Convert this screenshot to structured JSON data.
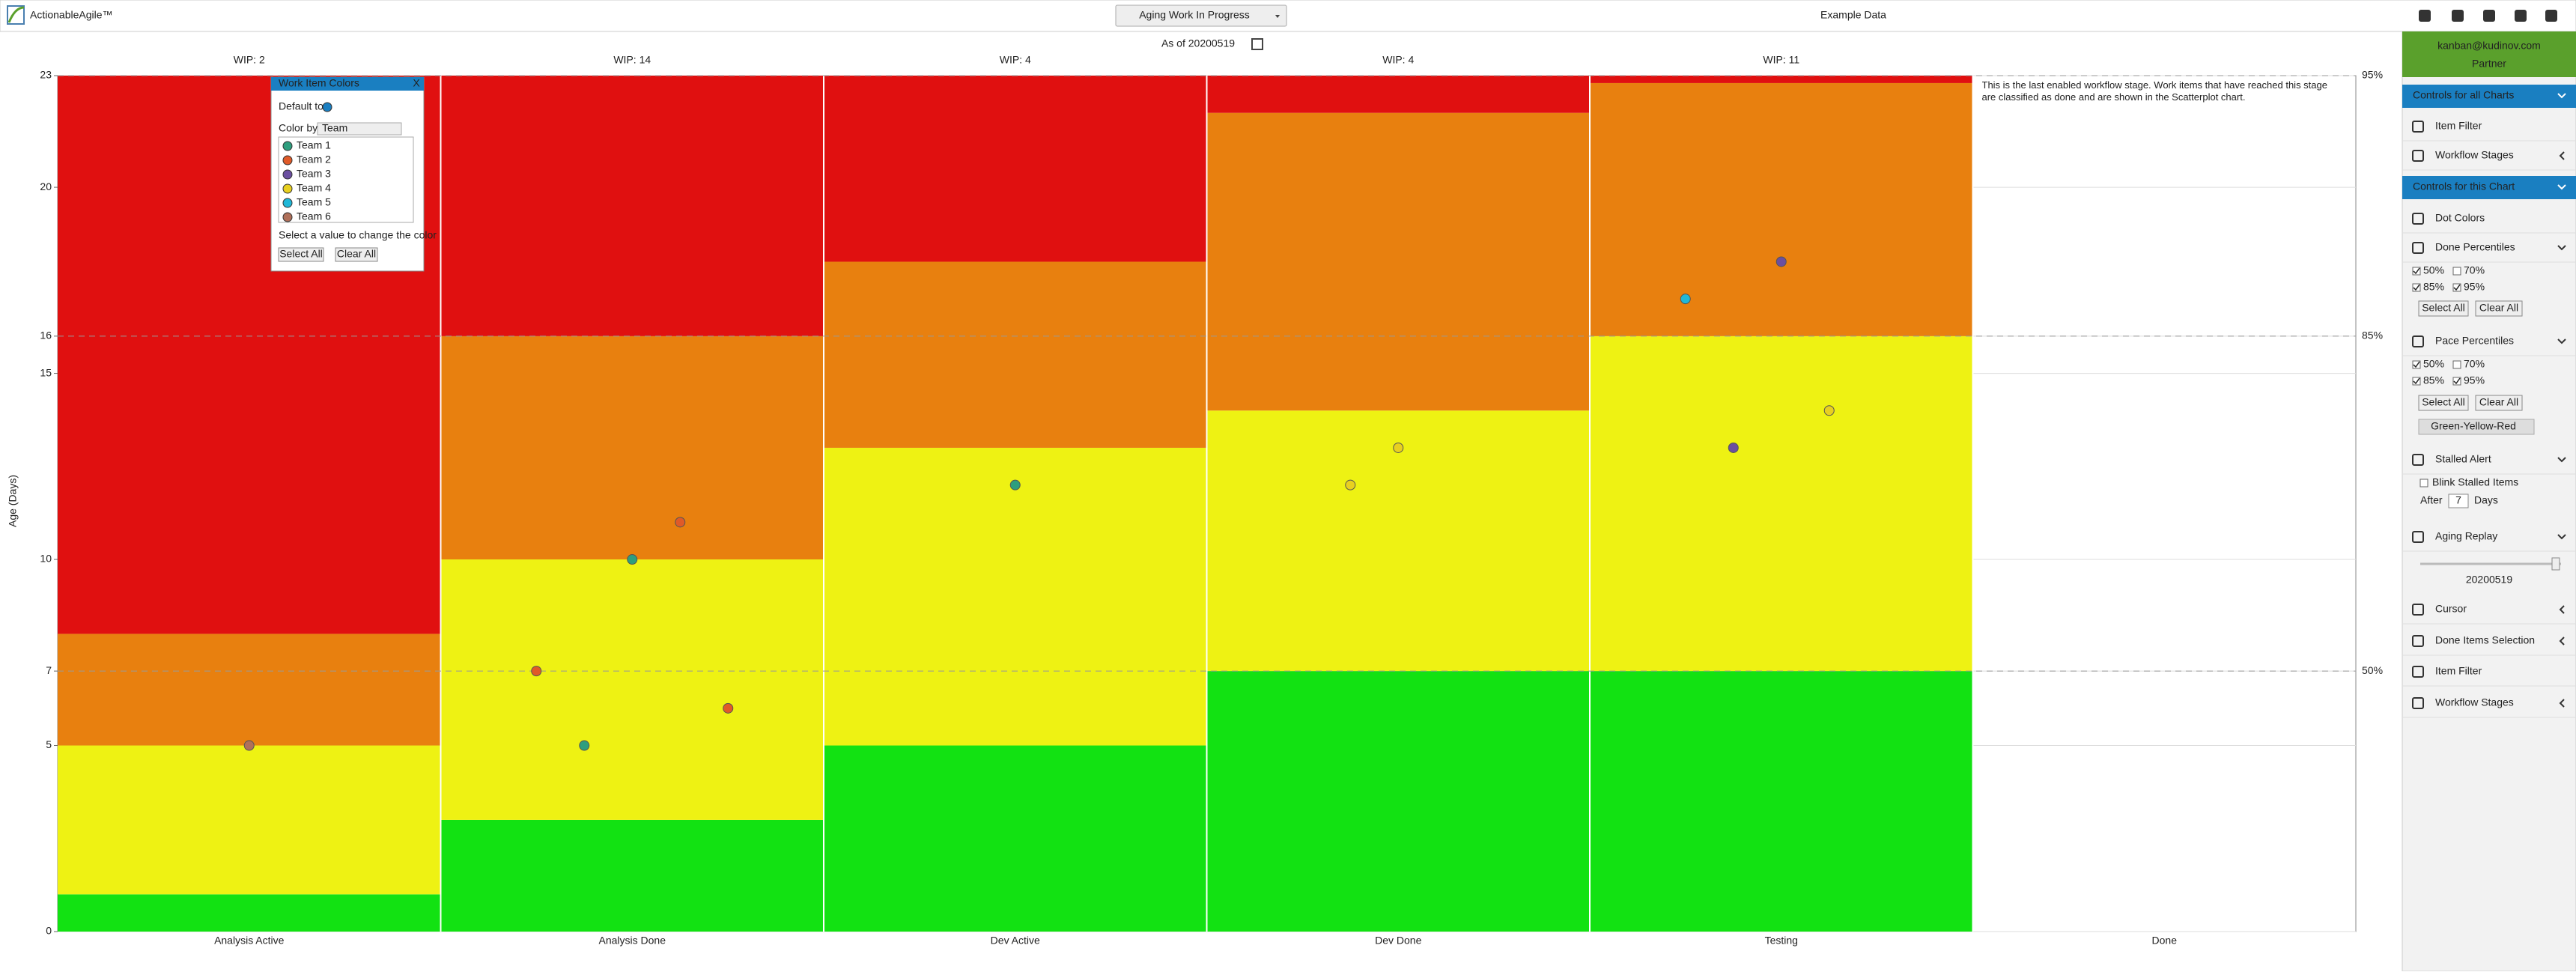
{
  "header": {
    "brand": "ActionableAgile™",
    "chart_menu": "Aging Work In Progress",
    "dataset": "Example Data"
  },
  "chart_data": {
    "type": "aging",
    "subtitle": "As of 20200519",
    "y_label": "Age (Days)",
    "categories": [
      "Analysis Active",
      "Analysis Done",
      "Dev Active",
      "Dev Done",
      "Testing",
      "Done"
    ],
    "wip": [
      "WIP: 2",
      "WIP: 14",
      "WIP: 4",
      "WIP: 4",
      "WIP: 11",
      null
    ],
    "ylim": [
      0,
      23
    ],
    "yticks": [
      0,
      5,
      7,
      10,
      15,
      16,
      20,
      23
    ],
    "grid": true,
    "bands": [
      {
        "color": "#12e212",
        "values": [
          1,
          3,
          5,
          7,
          7,
          null
        ]
      },
      {
        "color": "#eef213",
        "values": [
          5,
          10,
          13,
          14,
          16,
          null
        ]
      },
      {
        "color": "#e8800f",
        "values": [
          8,
          16,
          18,
          22,
          22.8,
          null
        ]
      }
    ],
    "top_color": "#e01010",
    "percentile_lines": [
      {
        "value": 23,
        "label": "95%"
      },
      {
        "value": 16,
        "label": "85%"
      },
      {
        "value": 7,
        "label": "50%"
      }
    ],
    "done_note": "This is the last enabled workflow stage. Work items that have reached this stage are classified as done and are shown in the Scatterplot chart.",
    "series": [
      {
        "name": "Team 1",
        "color": "#2e9e7e",
        "x": [
          "Analysis Done",
          "Analysis Done",
          "Dev Active"
        ],
        "values": [
          10,
          5,
          12
        ]
      },
      {
        "name": "Team 2",
        "color": "#e05a28",
        "x": [
          "Analysis Done",
          "Analysis Done",
          "Analysis Done"
        ],
        "values": [
          11,
          7,
          6
        ]
      },
      {
        "name": "Team 3",
        "color": "#6b4fa0",
        "x": [
          "Testing",
          "Testing"
        ],
        "values": [
          18,
          13
        ]
      },
      {
        "name": "Team 4",
        "color": "#e8d020",
        "x": [
          "Dev Done",
          "Dev Done",
          "Testing"
        ],
        "values": [
          13,
          12,
          14
        ]
      },
      {
        "name": "Team 5",
        "color": "#20b8d8",
        "x": [
          "Testing"
        ],
        "values": [
          17
        ]
      },
      {
        "name": "Team 6",
        "color": "#b0705a",
        "x": [
          "Analysis Active"
        ],
        "values": [
          5
        ]
      }
    ]
  },
  "popup": {
    "title": "Work Item Colors",
    "close": "X",
    "default_to": "Default to",
    "color_by": "Color by",
    "color_by_value": "Team",
    "hint": "Select a value to change the color",
    "select_all": "Select All",
    "clear_all": "Clear All"
  },
  "sidebar": {
    "user": "kanban@kudinov.com",
    "role": "Partner",
    "all_charts": "Controls for all Charts",
    "item_filter": "Item Filter",
    "workflow_stages": "Workflow Stages",
    "this_chart": "Controls for this Chart",
    "dot_colors": "Dot Colors",
    "done_percentiles": {
      "title": "Done Percentiles",
      "options": [
        "50%",
        "70%",
        "85%",
        "95%"
      ],
      "checked": [
        true,
        false,
        true,
        true
      ],
      "select_all": "Select All",
      "clear_all": "Clear All"
    },
    "pace_percentiles": {
      "title": "Pace Percentiles",
      "options": [
        "50%",
        "70%",
        "85%",
        "95%"
      ],
      "checked": [
        true,
        false,
        true,
        true
      ],
      "select_all": "Select All",
      "clear_all": "Clear All",
      "scheme": "Green-Yellow-Red"
    },
    "stalled_alert": {
      "title": "Stalled Alert",
      "blink": "Blink Stalled Items",
      "after": "After",
      "days_value": "7",
      "days": "Days"
    },
    "aging_replay": {
      "title": "Aging Replay",
      "date": "20200519"
    },
    "cursor": "Cursor",
    "done_items_selection": "Done Items Selection",
    "item_filter_2": "Item Filter",
    "workflow_stages_2": "Workflow Stages"
  }
}
